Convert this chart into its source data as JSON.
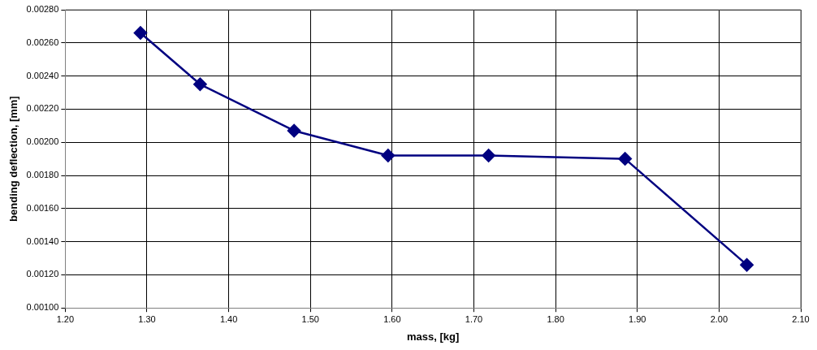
{
  "chart_data": {
    "type": "line",
    "xlabel": "mass, [kg]",
    "ylabel": "bending deflection, [mm]",
    "x": [
      1.292,
      1.365,
      1.48,
      1.595,
      1.718,
      1.885,
      2.034
    ],
    "series": [
      {
        "color": "#000080",
        "values": [
          0.00266,
          0.00235,
          0.00207,
          0.00192,
          0.00192,
          0.0019,
          0.00126
        ]
      }
    ],
    "xlim": [
      1.2,
      2.1
    ],
    "xticks": [
      {
        "value": 1.2,
        "label": "1.20"
      },
      {
        "value": 1.3,
        "label": "1.30"
      },
      {
        "value": 1.4,
        "label": "1.40"
      },
      {
        "value": 1.5,
        "label": "1.50"
      },
      {
        "value": 1.6,
        "label": "1.60"
      },
      {
        "value": 1.7,
        "label": "1.70"
      },
      {
        "value": 1.8,
        "label": "1.80"
      },
      {
        "value": 1.9,
        "label": "1.90"
      },
      {
        "value": 2.0,
        "label": "2.00"
      },
      {
        "value": 2.1,
        "label": "2.10"
      }
    ],
    "ylim": [
      0.001,
      0.0028
    ],
    "yticks": [
      {
        "value": 0.001,
        "label": "0.00100"
      },
      {
        "value": 0.0012,
        "label": "0.00120"
      },
      {
        "value": 0.0014,
        "label": "0.00140"
      },
      {
        "value": 0.0016,
        "label": "0.00160"
      },
      {
        "value": 0.0018,
        "label": "0.00180"
      },
      {
        "value": 0.002,
        "label": "0.00200"
      },
      {
        "value": 0.0022,
        "label": "0.00220"
      },
      {
        "value": 0.0024,
        "label": "0.00240"
      },
      {
        "value": 0.0026,
        "label": "0.00260"
      },
      {
        "value": 0.0028,
        "label": "0.00280"
      }
    ],
    "grid": true,
    "marker": "diamond",
    "line_style": "solid",
    "legend": false
  }
}
